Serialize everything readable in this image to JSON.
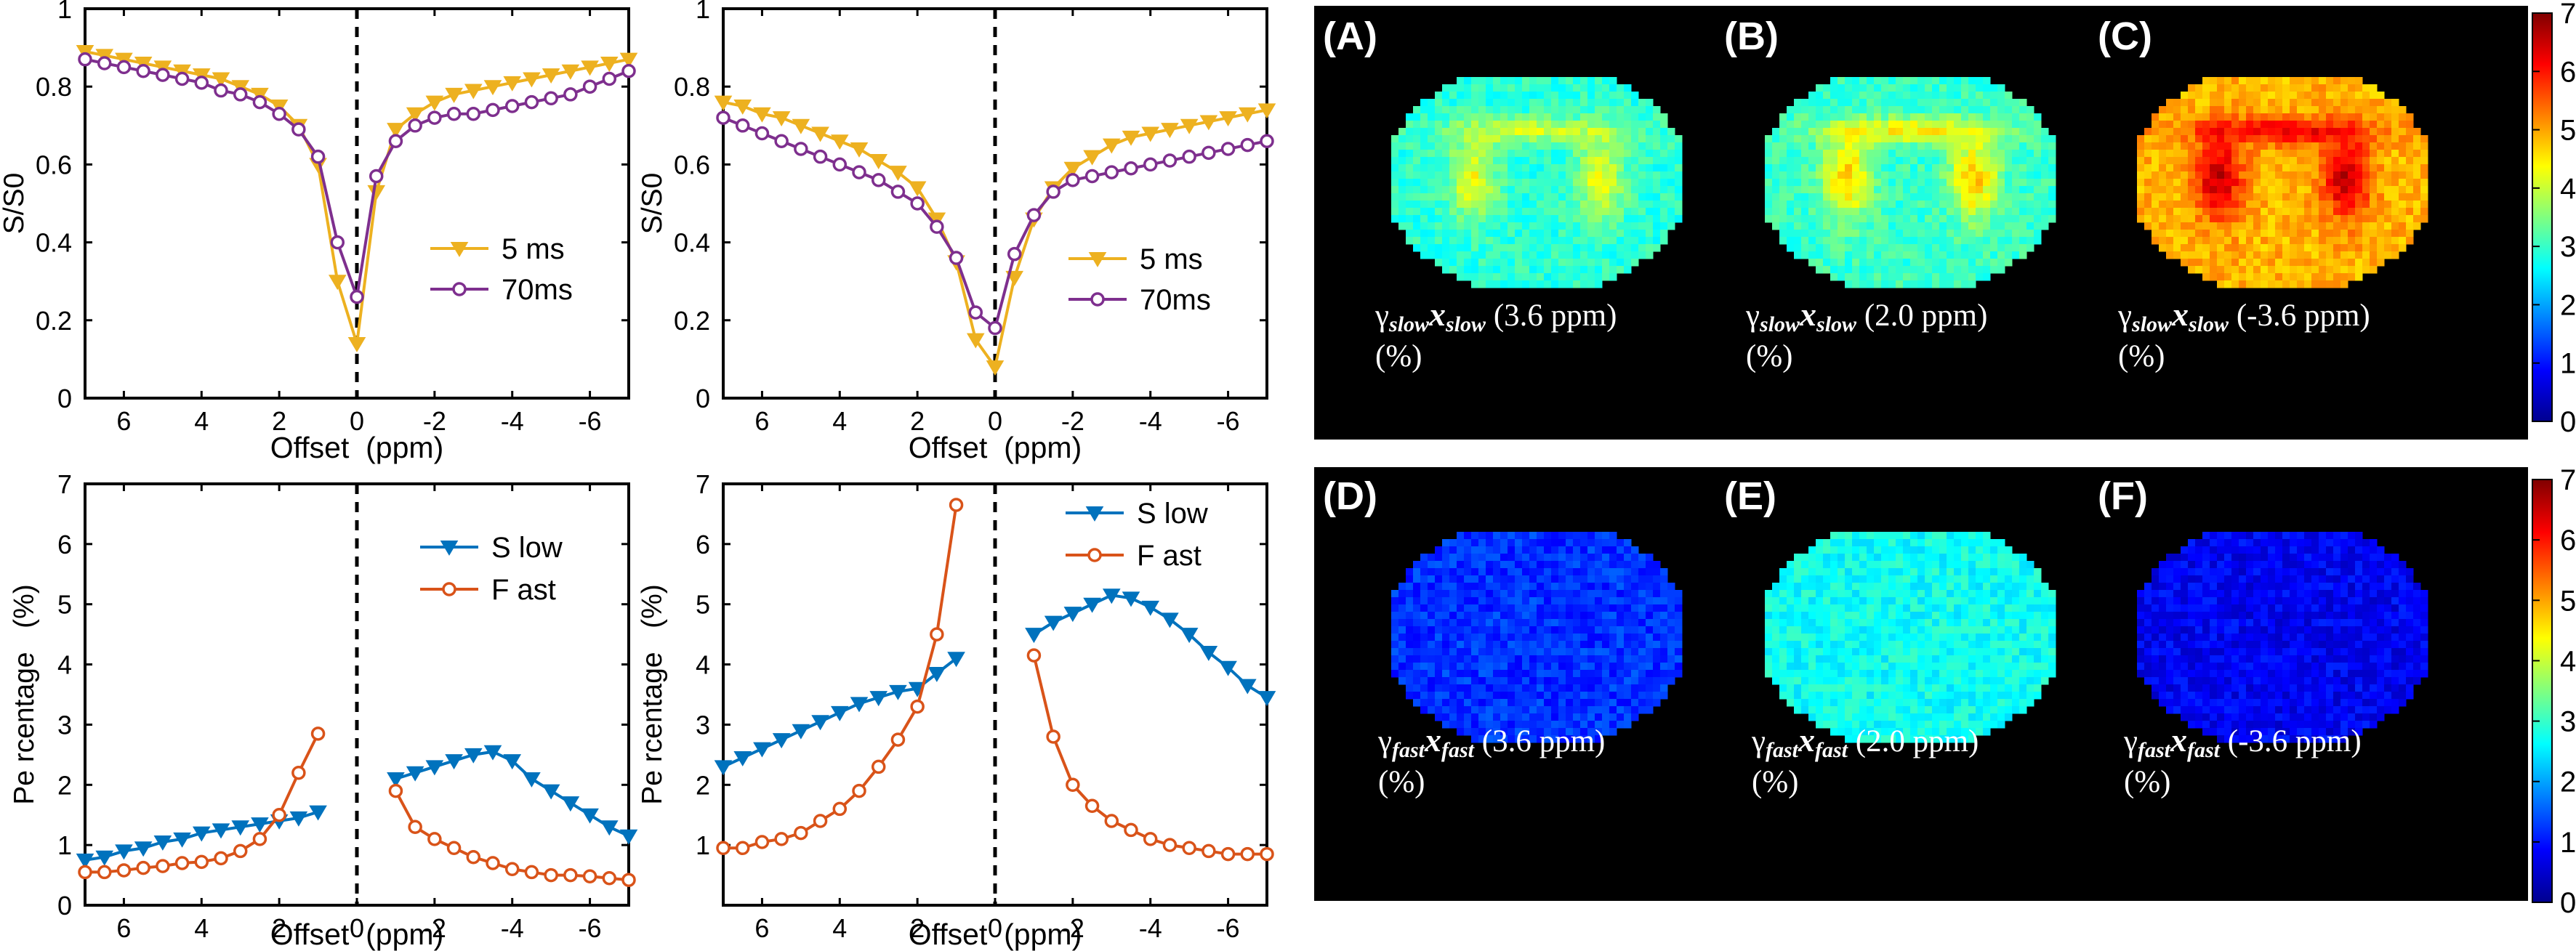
{
  "charts": [
    {
      "type": "line",
      "xlabel": "Offset  (ppm)",
      "ylabel": "S/S0",
      "xlim": [
        7,
        -7
      ],
      "ylim": [
        0,
        1
      ],
      "xticks": [
        6,
        4,
        2,
        0,
        -2,
        -4,
        -6
      ],
      "yticks": [
        0,
        0.2,
        0.4,
        0.6,
        0.8,
        1
      ],
      "ytick_labels": [
        "0",
        "0.2",
        "0.4",
        "0.6",
        "0.8",
        "1"
      ],
      "series": [
        {
          "name": "5 ms",
          "color": "#EDB120",
          "marker": "triangle-down",
          "x": [
            7.0,
            6.5,
            6.0,
            5.5,
            5.0,
            4.5,
            4.0,
            3.5,
            3.0,
            2.5,
            2.0,
            1.5,
            1.0,
            0.5,
            0.0,
            -0.5,
            -1.0,
            -1.5,
            -2.0,
            -2.5,
            -3.0,
            -3.5,
            -4.0,
            -4.5,
            -5.0,
            -5.5,
            -6.0,
            -6.5,
            -7.0
          ],
          "values": [
            0.89,
            0.88,
            0.87,
            0.86,
            0.85,
            0.84,
            0.83,
            0.82,
            0.8,
            0.78,
            0.75,
            0.7,
            0.6,
            0.3,
            0.14,
            0.53,
            0.69,
            0.73,
            0.76,
            0.78,
            0.79,
            0.8,
            0.81,
            0.82,
            0.83,
            0.84,
            0.85,
            0.86,
            0.87
          ]
        },
        {
          "name": "70ms",
          "color": "#7E2F8E",
          "marker": "circle",
          "x": [
            7.0,
            6.5,
            6.0,
            5.5,
            5.0,
            4.5,
            4.0,
            3.5,
            3.0,
            2.5,
            2.0,
            1.5,
            1.0,
            0.5,
            0.0,
            -0.5,
            -1.0,
            -1.5,
            -2.0,
            -2.5,
            -3.0,
            -3.5,
            -4.0,
            -4.5,
            -5.0,
            -5.5,
            -6.0,
            -6.5,
            -7.0
          ],
          "values": [
            0.87,
            0.86,
            0.85,
            0.84,
            0.83,
            0.82,
            0.81,
            0.79,
            0.78,
            0.76,
            0.73,
            0.69,
            0.62,
            0.4,
            0.26,
            0.57,
            0.66,
            0.7,
            0.72,
            0.73,
            0.73,
            0.74,
            0.75,
            0.76,
            0.77,
            0.78,
            0.8,
            0.82,
            0.84
          ]
        }
      ],
      "vline_x": 0,
      "legend_position": "lower-right"
    },
    {
      "type": "line",
      "xlabel": "Offset  (ppm)",
      "ylabel": "S/S0",
      "xlim": [
        7,
        -7
      ],
      "ylim": [
        0,
        1
      ],
      "xticks": [
        6,
        4,
        2,
        0,
        -2,
        -4,
        -6
      ],
      "yticks": [
        0,
        0.2,
        0.4,
        0.6,
        0.8,
        1
      ],
      "ytick_labels": [
        "0",
        "0.2",
        "0.4",
        "0.6",
        "0.8",
        "1"
      ],
      "series": [
        {
          "name": "5 ms",
          "color": "#EDB120",
          "marker": "triangle-down",
          "x": [
            7.0,
            6.5,
            6.0,
            5.5,
            5.0,
            4.5,
            4.0,
            3.5,
            3.0,
            2.5,
            2.0,
            1.5,
            1.0,
            0.5,
            0.0,
            -0.5,
            -1.0,
            -1.5,
            -2.0,
            -2.5,
            -3.0,
            -3.5,
            -4.0,
            -4.5,
            -5.0,
            -5.5,
            -6.0,
            -6.5,
            -7.0
          ],
          "values": [
            0.76,
            0.75,
            0.73,
            0.72,
            0.7,
            0.68,
            0.66,
            0.64,
            0.61,
            0.58,
            0.54,
            0.46,
            0.35,
            0.15,
            0.08,
            0.31,
            0.46,
            0.54,
            0.59,
            0.62,
            0.65,
            0.67,
            0.68,
            0.69,
            0.7,
            0.71,
            0.72,
            0.73,
            0.74
          ]
        },
        {
          "name": "70ms",
          "color": "#7E2F8E",
          "marker": "circle",
          "x": [
            7.0,
            6.5,
            6.0,
            5.5,
            5.0,
            4.5,
            4.0,
            3.5,
            3.0,
            2.5,
            2.0,
            1.5,
            1.0,
            0.5,
            0.0,
            -0.5,
            -1.0,
            -1.5,
            -2.0,
            -2.5,
            -3.0,
            -3.5,
            -4.0,
            -4.5,
            -5.0,
            -5.5,
            -6.0,
            -6.5,
            -7.0
          ],
          "values": [
            0.72,
            0.7,
            0.68,
            0.66,
            0.64,
            0.62,
            0.6,
            0.58,
            0.56,
            0.53,
            0.5,
            0.44,
            0.36,
            0.22,
            0.18,
            0.37,
            0.47,
            0.53,
            0.56,
            0.57,
            0.58,
            0.59,
            0.6,
            0.61,
            0.62,
            0.63,
            0.64,
            0.65,
            0.66
          ]
        }
      ],
      "vline_x": 0,
      "legend_position": "lower-right"
    },
    {
      "type": "line",
      "xlabel": "Offset  (ppm)",
      "ylabel": "Pe rcentage   (%)",
      "xlim": [
        7,
        -7
      ],
      "ylim": [
        0,
        7
      ],
      "xticks": [
        6,
        4,
        2,
        0,
        -2,
        -4,
        -6
      ],
      "yticks": [
        0,
        1,
        2,
        3,
        4,
        5,
        6,
        7
      ],
      "ytick_labels": [
        "0",
        "1",
        "2",
        "3",
        "4",
        "5",
        "6",
        "7"
      ],
      "series": [
        {
          "name": "S low",
          "color": "#0072BD",
          "marker": "triangle-down",
          "segments": [
            {
              "x": [
                7.0,
                6.5,
                6.0,
                5.5,
                5.0,
                4.5,
                4.0,
                3.5,
                3.0,
                2.5,
                2.0,
                1.5,
                1.0
              ],
              "values": [
                0.75,
                0.8,
                0.9,
                0.95,
                1.05,
                1.1,
                1.2,
                1.25,
                1.3,
                1.35,
                1.4,
                1.45,
                1.55
              ]
            },
            {
              "x": [
                -1.0,
                -1.5,
                -2.0,
                -2.5,
                -3.0,
                -3.5,
                -4.0,
                -4.5,
                -5.0,
                -5.5,
                -6.0,
                -6.5,
                -7.0
              ],
              "values": [
                2.1,
                2.2,
                2.3,
                2.4,
                2.5,
                2.55,
                2.4,
                2.1,
                1.9,
                1.7,
                1.5,
                1.3,
                1.15
              ]
            }
          ]
        },
        {
          "name": "F ast",
          "color": "#D95319",
          "marker": "circle",
          "segments": [
            {
              "x": [
                7.0,
                6.5,
                6.0,
                5.5,
                5.0,
                4.5,
                4.0,
                3.5,
                3.0,
                2.5,
                2.0,
                1.5,
                1.0
              ],
              "values": [
                0.55,
                0.55,
                0.58,
                0.62,
                0.65,
                0.7,
                0.72,
                0.78,
                0.9,
                1.1,
                1.5,
                2.2,
                2.85
              ]
            },
            {
              "x": [
                -1.0,
                -1.5,
                -2.0,
                -2.5,
                -3.0,
                -3.5,
                -4.0,
                -4.5,
                -5.0,
                -5.5,
                -6.0,
                -6.5,
                -7.0
              ],
              "values": [
                1.9,
                1.3,
                1.1,
                0.95,
                0.8,
                0.7,
                0.6,
                0.55,
                0.5,
                0.5,
                0.48,
                0.45,
                0.42
              ]
            }
          ]
        }
      ],
      "vline_x": 0,
      "legend_position": "top-right"
    },
    {
      "type": "line",
      "xlabel": "Offset  (ppm)",
      "ylabel": "Pe rcentage   (%)",
      "xlim": [
        7,
        -7
      ],
      "ylim": [
        0,
        7
      ],
      "xticks": [
        6,
        4,
        2,
        0,
        -2,
        -4,
        -6
      ],
      "yticks": [
        1,
        2,
        3,
        4,
        5,
        6,
        7
      ],
      "ytick_labels": [
        "1",
        "2",
        "3",
        "4",
        "5",
        "6",
        "7"
      ],
      "series": [
        {
          "name": "S low",
          "color": "#0072BD",
          "marker": "triangle-down",
          "segments": [
            {
              "x": [
                7.0,
                6.5,
                6.0,
                5.5,
                5.0,
                4.5,
                4.0,
                3.5,
                3.0,
                2.5,
                2.0,
                1.5,
                1.0
              ],
              "values": [
                2.3,
                2.45,
                2.6,
                2.75,
                2.9,
                3.05,
                3.2,
                3.35,
                3.45,
                3.55,
                3.6,
                3.85,
                4.1
              ]
            },
            {
              "x": [
                -1.0,
                -1.5,
                -2.0,
                -2.5,
                -3.0,
                -3.5,
                -4.0,
                -4.5,
                -5.0,
                -5.5,
                -6.0,
                -6.5,
                -7.0
              ],
              "values": [
                4.5,
                4.7,
                4.85,
                5.0,
                5.15,
                5.1,
                4.95,
                4.75,
                4.5,
                4.2,
                3.95,
                3.65,
                3.45
              ]
            }
          ]
        },
        {
          "name": "F ast",
          "color": "#D95319",
          "marker": "circle",
          "segments": [
            {
              "x": [
                7.0,
                6.5,
                6.0,
                5.5,
                5.0,
                4.5,
                4.0,
                3.5,
                3.0,
                2.5,
                2.0,
                1.5,
                1.0
              ],
              "values": [
                0.95,
                0.95,
                1.05,
                1.1,
                1.2,
                1.4,
                1.6,
                1.9,
                2.3,
                2.75,
                3.3,
                4.5,
                6.65
              ]
            },
            {
              "x": [
                -1.0,
                -1.5,
                -2.0,
                -2.5,
                -3.0,
                -3.5,
                -4.0,
                -4.5,
                -5.0,
                -5.5,
                -6.0,
                -6.5,
                -7.0
              ],
              "values": [
                4.15,
                2.8,
                2.0,
                1.65,
                1.4,
                1.25,
                1.1,
                1.0,
                0.95,
                0.9,
                0.85,
                0.85,
                0.85
              ]
            }
          ]
        }
      ],
      "vline_x": 0,
      "legend_position": "top-right"
    }
  ],
  "heatmaps": {
    "colorbar_ticks": [
      "0",
      "1",
      "2",
      "3",
      "4",
      "5",
      "6",
      "7"
    ],
    "colorbar_range": [
      0,
      7
    ],
    "colormap": "jet",
    "background": "#000000",
    "panels": [
      {
        "label": "(A)",
        "caption_gamma": "γ",
        "caption_sub1": "slow",
        "caption_x": "x",
        "caption_sub2": "slow",
        "caption_value": " (3.6 ppm)",
        "caption_unit": "(%)",
        "mean_level": 2.9,
        "feature_level": 4.3
      },
      {
        "label": "(B)",
        "caption_gamma": "γ",
        "caption_sub1": "slow",
        "caption_x": "x",
        "caption_sub2": "slow",
        "caption_value": " (2.0 ppm)",
        "caption_unit": "(%)",
        "mean_level": 3.0,
        "feature_level": 4.8
      },
      {
        "label": "(C)",
        "caption_gamma": "γ",
        "caption_sub1": "slow",
        "caption_x": "x",
        "caption_sub2": "slow",
        "caption_value": " (-3.6 ppm)",
        "caption_unit": "(%)",
        "mean_level": 4.9,
        "feature_level": 6.6
      },
      {
        "label": "(D)",
        "caption_gamma": "γ",
        "caption_sub1": "fast",
        "caption_x": "x",
        "caption_sub2": "fast",
        "caption_value": " (3.6 ppm)",
        "caption_unit": "(%)",
        "mean_level": 1.2,
        "feature_level": 1.2
      },
      {
        "label": "(E)",
        "caption_gamma": "γ",
        "caption_sub1": "fast",
        "caption_x": "x",
        "caption_sub2": "fast",
        "caption_value": " (2.0 ppm)",
        "caption_unit": "(%)",
        "mean_level": 2.7,
        "feature_level": 2.7
      },
      {
        "label": "(F)",
        "caption_gamma": "γ",
        "caption_sub1": "fast",
        "caption_x": "x",
        "caption_sub2": "fast",
        "caption_value": " (-3.6 ppm)",
        "caption_unit": "(%)",
        "mean_level": 0.8,
        "feature_level": 0.8
      }
    ]
  }
}
